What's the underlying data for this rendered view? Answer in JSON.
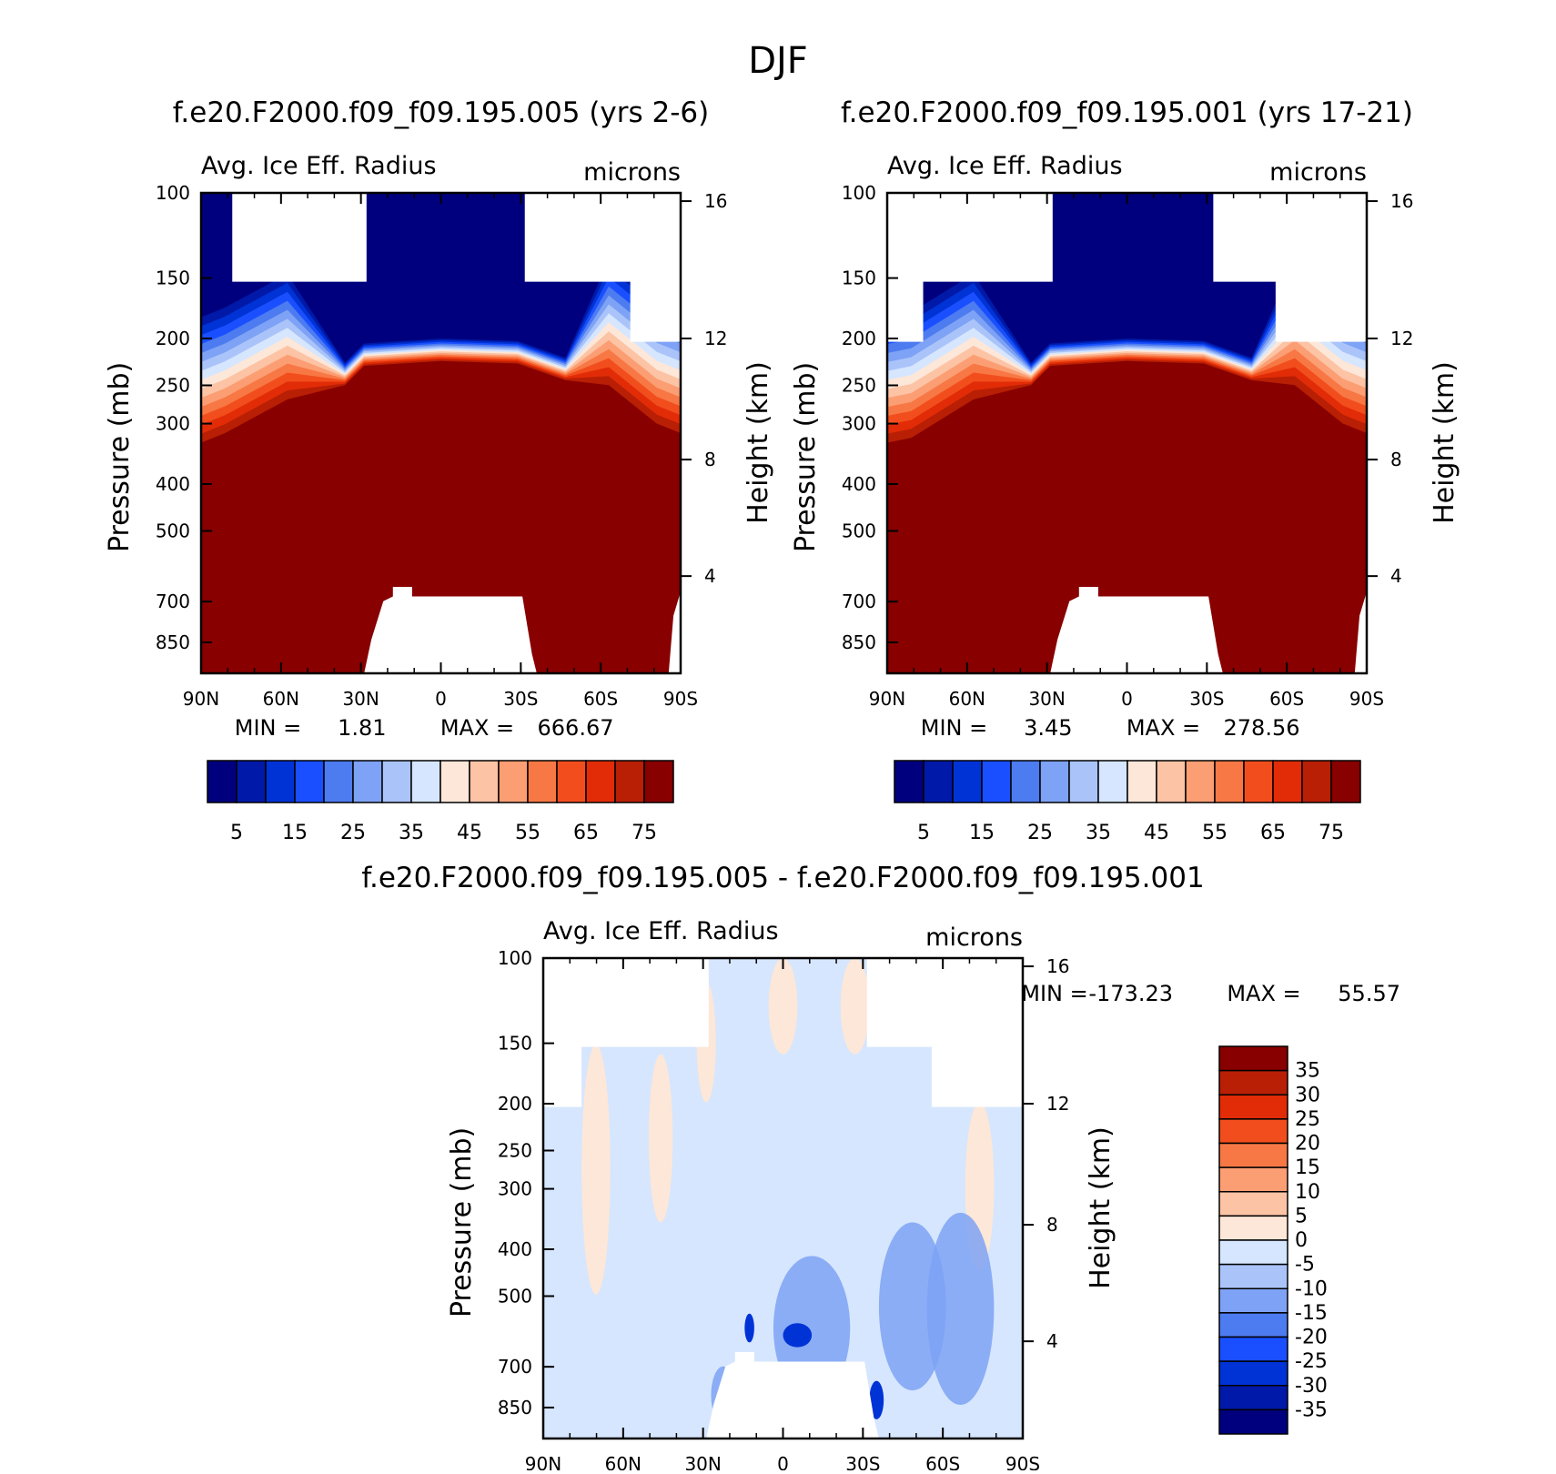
{
  "page_title": "DJF",
  "chart_data": [
    {
      "type": "heatmap",
      "title": "f.e20.F2000.f09_f09.195.005 (yrs 2-6)",
      "subtitle": "Avg. Ice Eff. Radius",
      "units": "microns",
      "ylabel": "Pressure (mb)",
      "ylabel_right": "Height (km)",
      "x_ticks": [
        "90N",
        "60N",
        "30N",
        "0",
        "30S",
        "60S",
        "90S"
      ],
      "y_ticks": [
        "100",
        "150",
        "200",
        "250",
        "300",
        "400",
        "500",
        "700",
        "850"
      ],
      "y_ticks_right": [
        "16",
        "12",
        "8",
        "4"
      ],
      "min_label": "MIN =",
      "min_value": "1.81",
      "max_label": "MAX =",
      "max_value": "666.67",
      "colorbar": {
        "orientation": "horizontal",
        "labels": [
          "5",
          "15",
          "25",
          "35",
          "45",
          "55",
          "65",
          "75"
        ],
        "colors": [
          "#00007e",
          "#0019a8",
          "#0033d6",
          "#1a4fff",
          "#4d7bf0",
          "#7ea2f5",
          "#aac4fa",
          "#d6e6fe",
          "#fde7d8",
          "#fcc3a5",
          "#fc9e73",
          "#f77845",
          "#f24e1d",
          "#e12c07",
          "#b81f04",
          "#880000"
        ]
      }
    },
    {
      "type": "heatmap",
      "title": "f.e20.F2000.f09_f09.195.001 (yrs 17-21)",
      "subtitle": "Avg. Ice Eff. Radius",
      "units": "microns",
      "ylabel": "Pressure (mb)",
      "ylabel_right": "Height (km)",
      "x_ticks": [
        "90N",
        "60N",
        "30N",
        "0",
        "30S",
        "60S",
        "90S"
      ],
      "y_ticks": [
        "100",
        "150",
        "200",
        "250",
        "300",
        "400",
        "500",
        "700",
        "850"
      ],
      "y_ticks_right": [
        "16",
        "12",
        "8",
        "4"
      ],
      "min_label": "MIN =",
      "min_value": "3.45",
      "max_label": "MAX =",
      "max_value": "278.56",
      "colorbar": {
        "orientation": "horizontal",
        "labels": [
          "5",
          "15",
          "25",
          "35",
          "45",
          "55",
          "65",
          "75"
        ],
        "colors": [
          "#00007e",
          "#0019a8",
          "#0033d6",
          "#1a4fff",
          "#4d7bf0",
          "#7ea2f5",
          "#aac4fa",
          "#d6e6fe",
          "#fde7d8",
          "#fcc3a5",
          "#fc9e73",
          "#f77845",
          "#f24e1d",
          "#e12c07",
          "#b81f04",
          "#880000"
        ]
      }
    },
    {
      "type": "heatmap",
      "title": "f.e20.F2000.f09_f09.195.005 - f.e20.F2000.f09_f09.195.001",
      "subtitle": "Avg. Ice Eff. Radius",
      "units": "microns",
      "ylabel": "Pressure (mb)",
      "ylabel_right": "Height (km)",
      "x_ticks": [
        "90N",
        "60N",
        "30N",
        "0",
        "30S",
        "60S",
        "90S"
      ],
      "y_ticks": [
        "100",
        "150",
        "200",
        "250",
        "300",
        "400",
        "500",
        "700",
        "850"
      ],
      "y_ticks_right": [
        "16",
        "12",
        "8",
        "4"
      ],
      "min_label": "MIN =",
      "min_value": "-173.23",
      "max_label": "MAX =",
      "max_value": "55.57",
      "colorbar": {
        "orientation": "vertical",
        "labels": [
          "35",
          "30",
          "25",
          "20",
          "15",
          "10",
          "5",
          "0",
          "-5",
          "-10",
          "-15",
          "-20",
          "-25",
          "-30",
          "-35"
        ],
        "colors": [
          "#880000",
          "#b81f04",
          "#e12c07",
          "#f24e1d",
          "#f77845",
          "#fc9e73",
          "#fcc3a5",
          "#fde7d8",
          "#d6e6fe",
          "#aac4fa",
          "#7ea2f5",
          "#4d7bf0",
          "#1a4fff",
          "#0033d6",
          "#0019a8",
          "#00007e"
        ]
      }
    }
  ]
}
